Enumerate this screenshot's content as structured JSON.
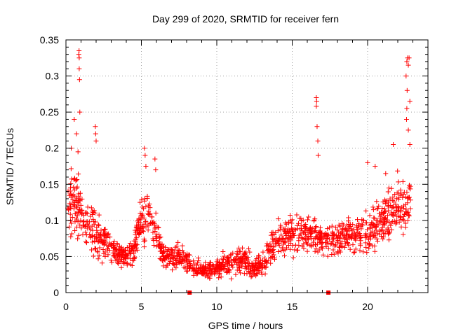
{
  "chart_data": {
    "type": "scatter",
    "title": "Day 299 of 2020, SRMTID for receiver fern",
    "xlabel": "GPS time / hours",
    "ylabel": "SRMTID / TECUs",
    "xlim": [
      0,
      24
    ],
    "ylim": [
      0,
      0.35
    ],
    "x_ticks": [
      0,
      5,
      10,
      15,
      20
    ],
    "x_tick_labels": [
      "0",
      "5",
      "10",
      "15",
      "20"
    ],
    "y_ticks": [
      0,
      0.05,
      0.1,
      0.15,
      0.2,
      0.25,
      0.3,
      0.35
    ],
    "y_tick_labels": [
      "0",
      "0.05",
      "0.1",
      "0.15",
      "0.2",
      "0.25",
      "0.3",
      "0.35"
    ],
    "grid": true,
    "marker": "plus",
    "series_color": "#ff0000",
    "profile": {
      "hours": [
        0,
        0.5,
        1,
        1.5,
        2,
        2.5,
        3,
        3.5,
        4,
        4.5,
        5,
        5.5,
        6,
        6.5,
        7,
        7.5,
        8,
        8.5,
        9,
        9.5,
        10,
        10.5,
        11,
        11.5,
        12,
        12.5,
        13,
        13.5,
        14,
        14.5,
        15,
        15.5,
        16,
        16.5,
        17,
        17.5,
        18,
        18.5,
        19,
        19.5,
        20,
        20.5,
        21,
        21.5,
        22,
        22.5,
        22.9
      ],
      "typical_srmtid": [
        0.12,
        0.13,
        0.11,
        0.09,
        0.075,
        0.07,
        0.06,
        0.055,
        0.05,
        0.06,
        0.1,
        0.11,
        0.08,
        0.05,
        0.05,
        0.05,
        0.045,
        0.035,
        0.03,
        0.03,
        0.035,
        0.04,
        0.04,
        0.045,
        0.04,
        0.035,
        0.035,
        0.06,
        0.075,
        0.08,
        0.085,
        0.085,
        0.08,
        0.08,
        0.075,
        0.07,
        0.075,
        0.08,
        0.08,
        0.085,
        0.085,
        0.09,
        0.1,
        0.11,
        0.12,
        0.12,
        0.13
      ],
      "spread": [
        0.05,
        0.06,
        0.05,
        0.04,
        0.035,
        0.03,
        0.025,
        0.02,
        0.02,
        0.025,
        0.04,
        0.045,
        0.03,
        0.02,
        0.02,
        0.02,
        0.02,
        0.015,
        0.015,
        0.015,
        0.018,
        0.02,
        0.02,
        0.025,
        0.022,
        0.02,
        0.02,
        0.03,
        0.03,
        0.03,
        0.035,
        0.035,
        0.035,
        0.03,
        0.03,
        0.03,
        0.03,
        0.03,
        0.03,
        0.035,
        0.035,
        0.035,
        0.04,
        0.04,
        0.045,
        0.05,
        0.05
      ]
    },
    "spikes": [
      {
        "x": 0.35,
        "y": 0.2
      },
      {
        "x": 0.55,
        "y": 0.24
      },
      {
        "x": 0.7,
        "y": 0.22
      },
      {
        "x": 0.8,
        "y": 0.195
      },
      {
        "x": 0.85,
        "y": 0.33
      },
      {
        "x": 0.87,
        "y": 0.335
      },
      {
        "x": 0.88,
        "y": 0.325
      },
      {
        "x": 0.88,
        "y": 0.31
      },
      {
        "x": 0.9,
        "y": 0.295
      },
      {
        "x": 0.92,
        "y": 0.25
      },
      {
        "x": 1.95,
        "y": 0.23
      },
      {
        "x": 1.97,
        "y": 0.22
      },
      {
        "x": 2.0,
        "y": 0.21
      },
      {
        "x": 5.2,
        "y": 0.2
      },
      {
        "x": 5.25,
        "y": 0.19
      },
      {
        "x": 5.3,
        "y": 0.175
      },
      {
        "x": 5.9,
        "y": 0.185
      },
      {
        "x": 5.95,
        "y": 0.17
      },
      {
        "x": 16.6,
        "y": 0.27
      },
      {
        "x": 16.62,
        "y": 0.265
      },
      {
        "x": 16.6,
        "y": 0.258
      },
      {
        "x": 16.65,
        "y": 0.23
      },
      {
        "x": 16.7,
        "y": 0.21
      },
      {
        "x": 16.72,
        "y": 0.19
      },
      {
        "x": 22.55,
        "y": 0.3
      },
      {
        "x": 22.6,
        "y": 0.32
      },
      {
        "x": 22.65,
        "y": 0.325
      },
      {
        "x": 22.7,
        "y": 0.315
      },
      {
        "x": 22.75,
        "y": 0.325
      },
      {
        "x": 22.62,
        "y": 0.28
      },
      {
        "x": 22.6,
        "y": 0.255
      },
      {
        "x": 22.58,
        "y": 0.24
      },
      {
        "x": 22.7,
        "y": 0.225
      },
      {
        "x": 22.8,
        "y": 0.265
      },
      {
        "x": 22.8,
        "y": 0.205
      },
      {
        "x": 21.7,
        "y": 0.205
      },
      {
        "x": 20.0,
        "y": 0.18
      },
      {
        "x": 20.5,
        "y": 0.175
      },
      {
        "x": 21.2,
        "y": 0.165
      }
    ],
    "point_count": 1500,
    "axis_markers": [
      {
        "x": 8.2,
        "y": 0
      },
      {
        "x": 17.4,
        "y": 0
      }
    ]
  }
}
